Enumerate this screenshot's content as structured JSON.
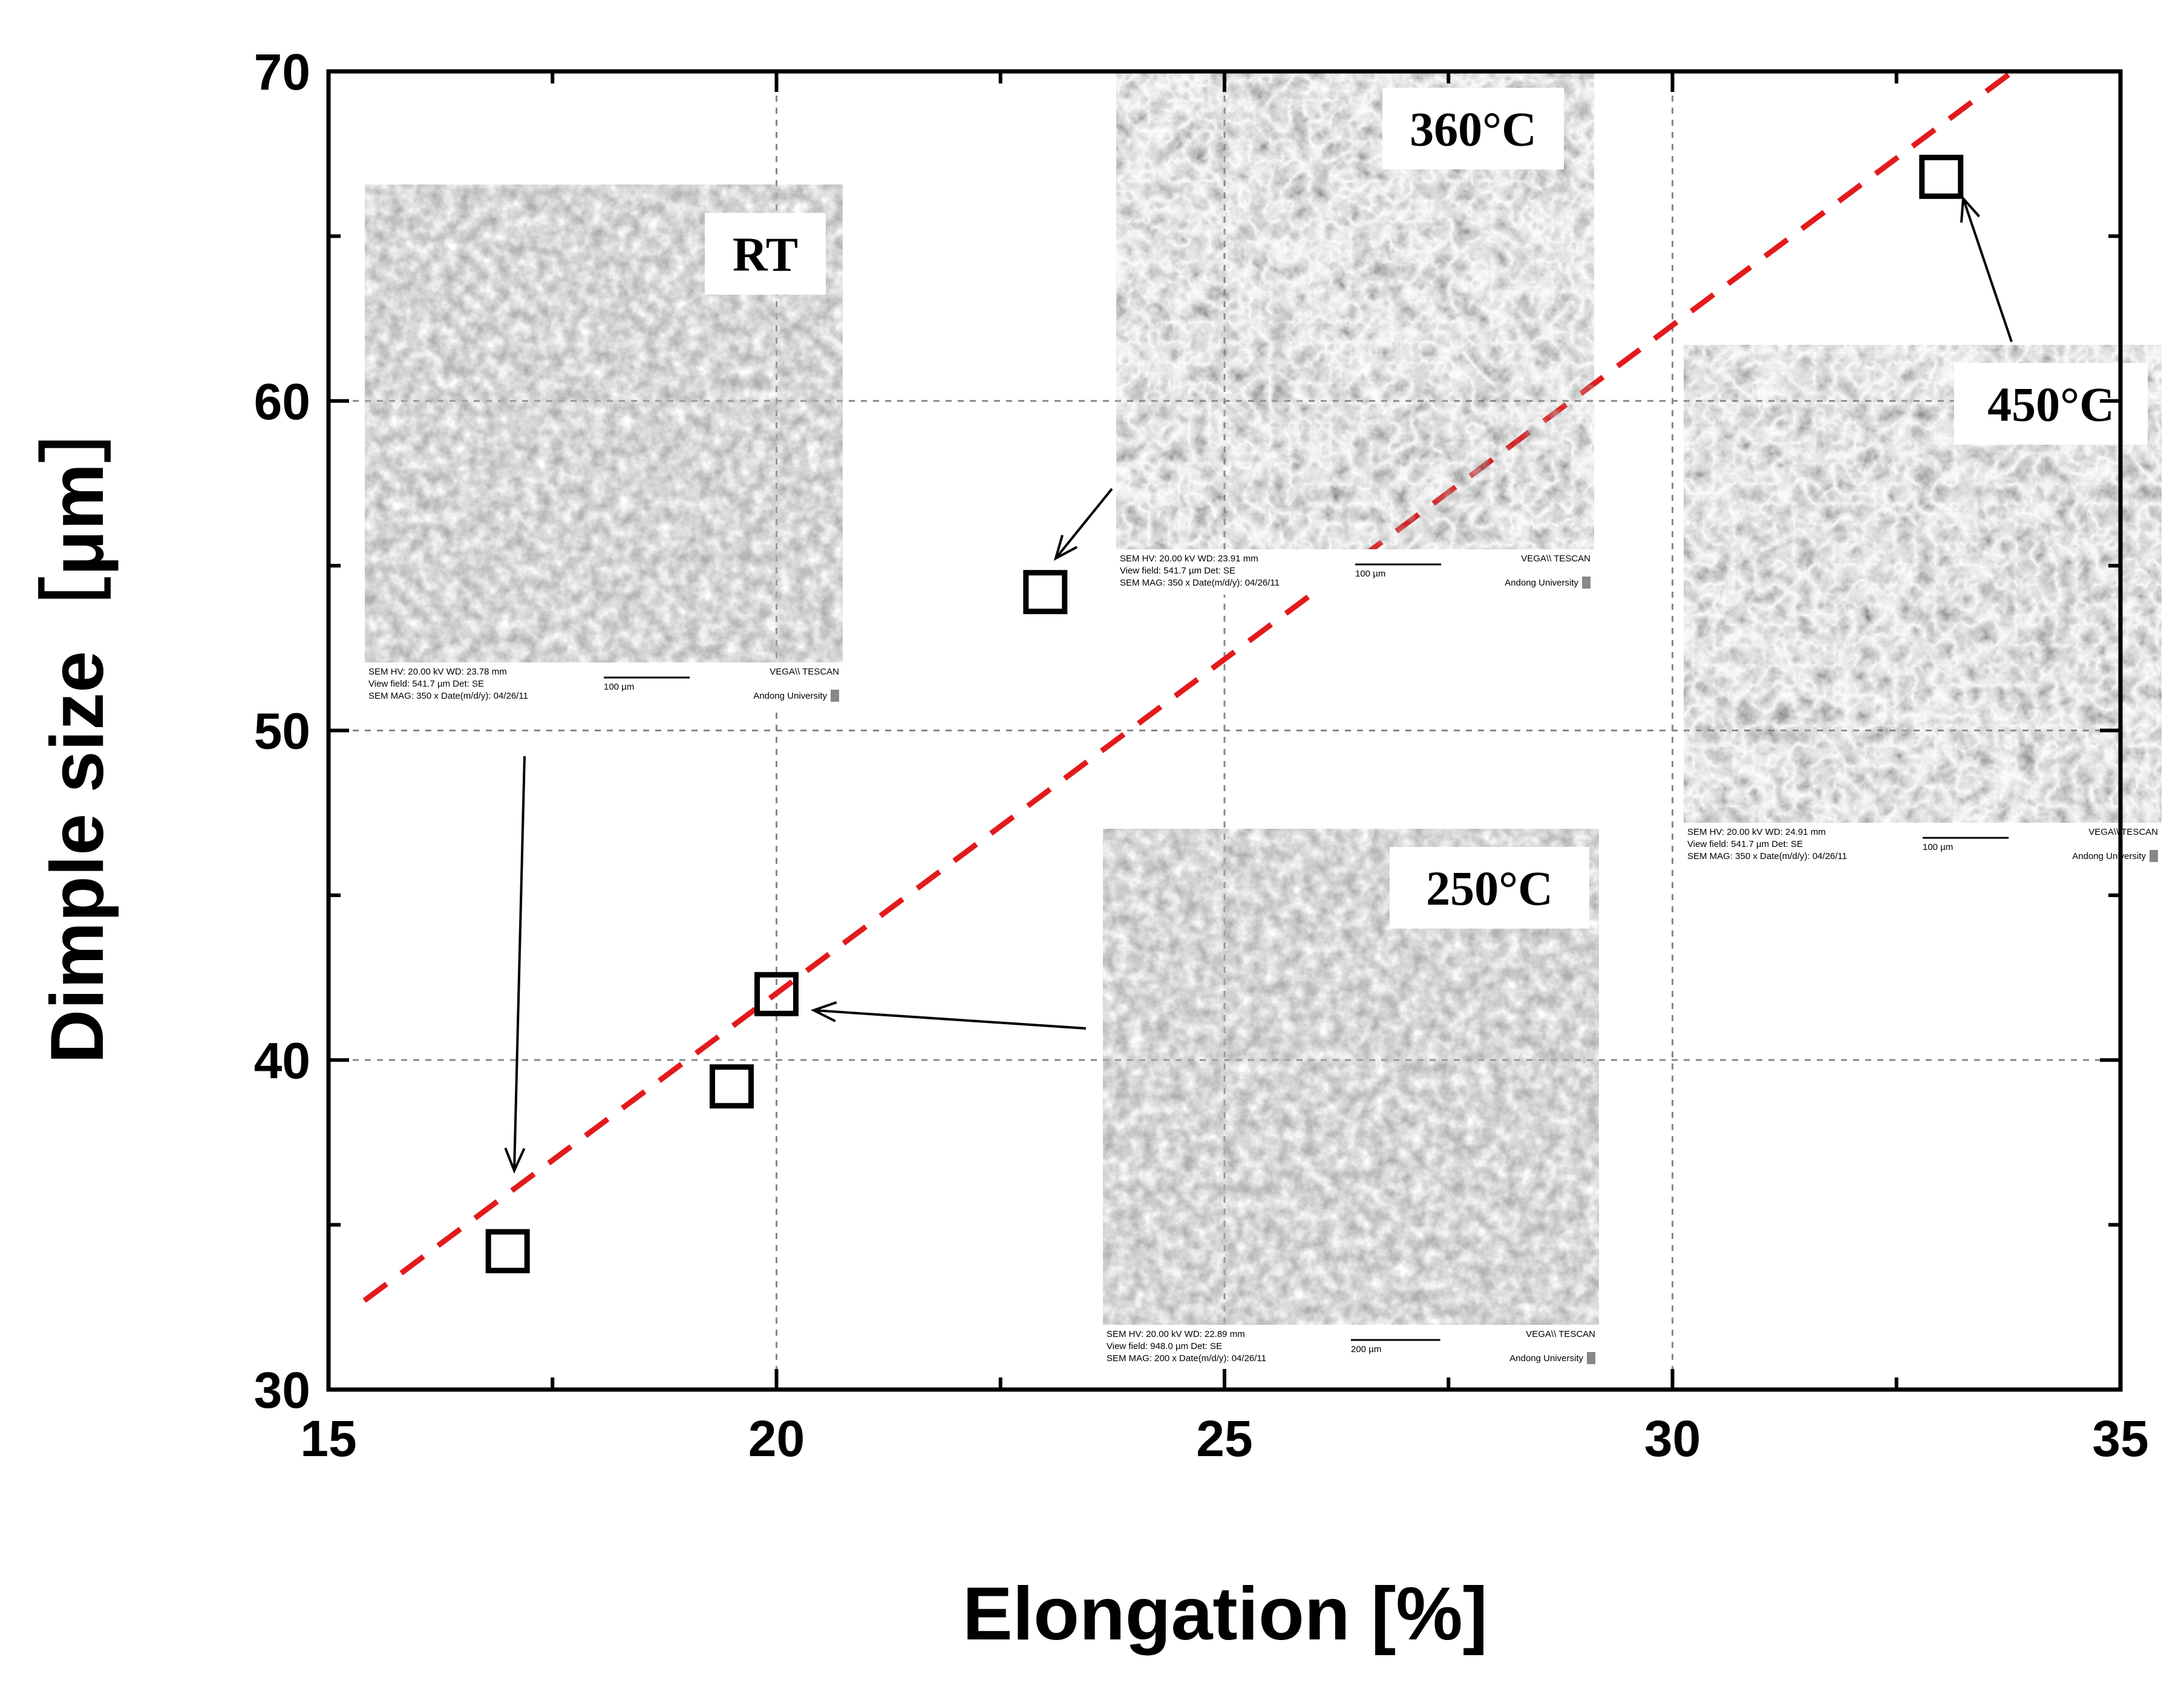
{
  "chart_data": {
    "type": "scatter",
    "title": "",
    "xlabel": "Elongation [%]",
    "ylabel": "Dimple size［μm］",
    "xlim": [
      15,
      35
    ],
    "ylim": [
      30,
      70
    ],
    "xticks": [
      "15",
      "20",
      "25",
      "30",
      "35"
    ],
    "yticks": [
      "30",
      "40",
      "50",
      "60",
      "70"
    ],
    "grid": true,
    "points": [
      {
        "x": 17.0,
        "y": 34.2
      },
      {
        "x": 19.5,
        "y": 39.2
      },
      {
        "x": 20.0,
        "y": 42.0
      },
      {
        "x": 23.0,
        "y": 54.2
      },
      {
        "x": 33.0,
        "y": 66.8
      }
    ],
    "trend_line": {
      "x": [
        15.4,
        33.8
      ],
      "y": [
        32.7,
        70.0
      ],
      "color": "#e31a1c",
      "style": "dashed"
    },
    "insets": [
      {
        "label": "RT",
        "sem_info": {
          "line1": "SEM HV: 20.00 kV   WD: 23.78 mm",
          "line2": "View field: 541.7 µm   Det: SE",
          "line3": "SEM MAG: 350 x   Date(m/d/y): 04/26/11",
          "scale": "100 µm",
          "brand": "VEGA\\\\ TESCAN",
          "org": "Andong University"
        }
      },
      {
        "label": "360°C",
        "sem_info": {
          "line1": "SEM HV: 20.00 kV   WD: 23.91 mm",
          "line2": "View field: 541.7 µm   Det: SE",
          "line3": "SEM MAG: 350 x   Date(m/d/y): 04/26/11",
          "scale": "100 µm",
          "brand": "VEGA\\\\ TESCAN",
          "org": "Andong University"
        }
      },
      {
        "label": "250°C",
        "sem_info": {
          "line1": "SEM HV: 20.00 kV   WD: 22.89 mm",
          "line2": "View field: 948.0 µm   Det: SE",
          "line3": "SEM MAG: 200 x   Date(m/d/y): 04/26/11",
          "scale": "200 µm",
          "brand": "VEGA\\\\ TESCAN",
          "org": "Andong University"
        }
      },
      {
        "label": "450°C",
        "sem_info": {
          "line1": "SEM HV: 20.00 kV   WD: 24.91 mm",
          "line2": "View field: 541.7 µm   Det: SE",
          "line3": "SEM MAG: 350 x   Date(m/d/y): 04/26/11",
          "scale": "100 µm",
          "brand": "VEGA\\\\ TESCAN",
          "org": "Andong University"
        }
      }
    ]
  }
}
